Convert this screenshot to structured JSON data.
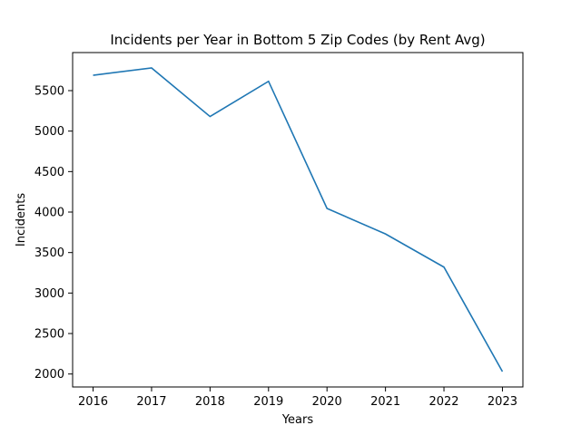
{
  "chart_data": {
    "type": "line",
    "title": "Incidents per Year in Bottom 5 Zip Codes (by Rent Avg)",
    "xlabel": "Years",
    "ylabel": "Incidents",
    "x": [
      2016,
      2017,
      2018,
      2019,
      2020,
      2021,
      2022,
      2023
    ],
    "x_tick_labels": [
      "2016",
      "2017",
      "2018",
      "2019",
      "2020",
      "2021",
      "2022",
      "2023"
    ],
    "y_ticks": [
      2000,
      2500,
      3000,
      3500,
      4000,
      4500,
      5000,
      5500
    ],
    "y_tick_labels": [
      "2000",
      "2500",
      "3000",
      "3500",
      "4000",
      "4500",
      "5000",
      "5500"
    ],
    "xlim": [
      2015.65,
      2023.35
    ],
    "ylim": [
      1840,
      5970
    ],
    "series": [
      {
        "values": [
          5690,
          5780,
          5180,
          5615,
          4045,
          3730,
          3320,
          2030
        ],
        "color": "#1f77b4"
      }
    ],
    "grid": false,
    "legend": "none"
  }
}
